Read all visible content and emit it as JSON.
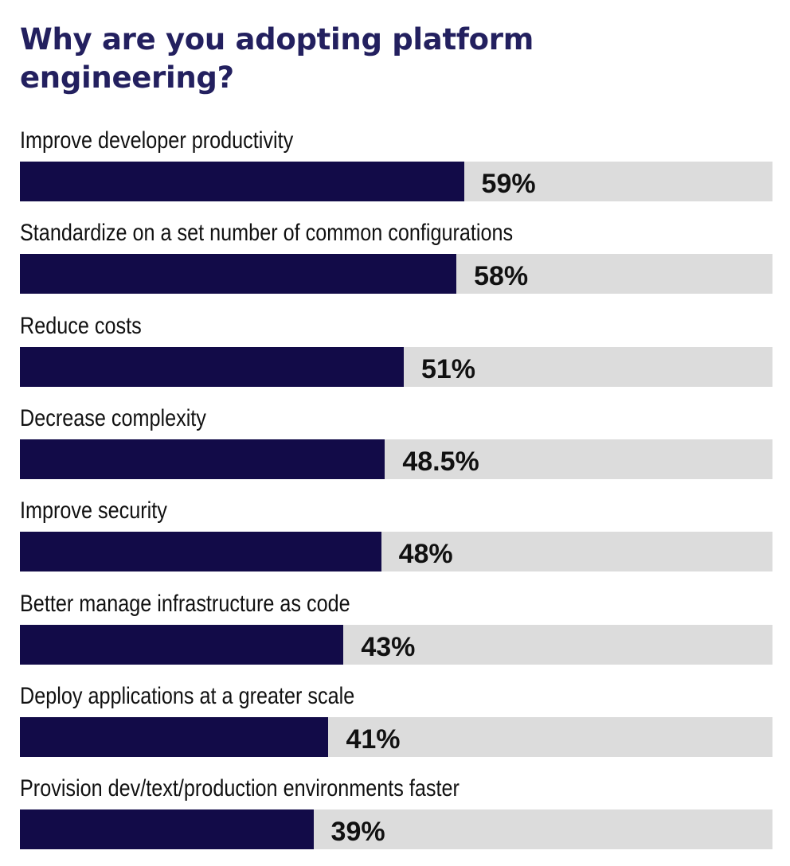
{
  "chart_data": {
    "type": "bar",
    "orientation": "horizontal",
    "title": "Why are you adopting platform engineering?",
    "categories": [
      "Improve developer productivity",
      "Standardize on a set number of common configurations",
      "Reduce costs",
      "Decrease complexity",
      "Improve security",
      "Better manage infrastructure as code",
      "Deploy applications at a greater scale",
      "Provision dev/text/production environments faster"
    ],
    "values": [
      59,
      58,
      51,
      48.5,
      48,
      43,
      41,
      39
    ],
    "value_labels": [
      "59%",
      "58%",
      "51%",
      "48.5%",
      "48%",
      "43%",
      "41%",
      "39%"
    ],
    "xlim": [
      0,
      100
    ],
    "unit": "%",
    "grid": false,
    "legend": "none",
    "colors": {
      "title": "#23205f",
      "bar": "#120b48",
      "track": "#dcdcdc",
      "text": "#111111"
    }
  }
}
